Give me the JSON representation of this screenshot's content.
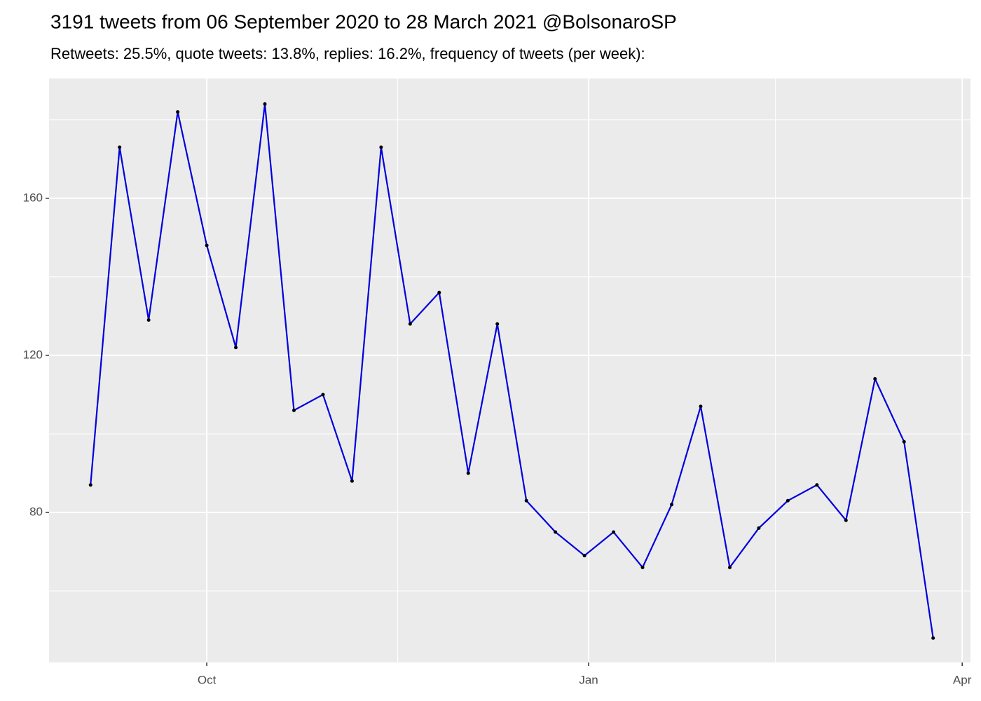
{
  "chart_data": {
    "type": "line",
    "title": "3191 tweets from 06 September 2020 to 28 March 2021 @BolsonaroSP",
    "subtitle": "Retweets: 25.5%, quote tweets: 13.8%, replies: 16.2%, frequency of tweets (per week):",
    "x": [
      "2020-09-03",
      "2020-09-10",
      "2020-09-17",
      "2020-09-24",
      "2020-10-01",
      "2020-10-08",
      "2020-10-15",
      "2020-10-22",
      "2020-10-29",
      "2020-11-05",
      "2020-11-12",
      "2020-11-19",
      "2020-11-26",
      "2020-12-03",
      "2020-12-10",
      "2020-12-17",
      "2020-12-24",
      "2020-12-31",
      "2021-01-07",
      "2021-01-14",
      "2021-01-21",
      "2021-01-28",
      "2021-02-04",
      "2021-02-11",
      "2021-02-18",
      "2021-02-25",
      "2021-03-04",
      "2021-03-11",
      "2021-03-18",
      "2021-03-25"
    ],
    "series": [
      {
        "color": "#0000dd",
        "point_color": "#000000",
        "values": [
          87,
          173,
          129,
          182,
          148,
          122,
          184,
          106,
          110,
          88,
          173,
          128,
          136,
          90,
          128,
          83,
          75,
          69,
          75,
          66,
          82,
          107,
          66,
          76,
          83,
          87,
          78,
          114,
          98,
          48
        ]
      }
    ],
    "xlim": [
      "2020-08-24",
      "2021-04-03"
    ],
    "xticks": [
      {
        "value": "2020-10-01",
        "label": "Oct"
      },
      {
        "value": "2021-01-01",
        "label": "Jan"
      },
      {
        "value": "2021-04-01",
        "label": "Apr"
      }
    ],
    "ylim": [
      41.8,
      190.5
    ],
    "yticks": [
      80,
      120,
      160
    ],
    "grid": true,
    "minor_grid": true
  }
}
